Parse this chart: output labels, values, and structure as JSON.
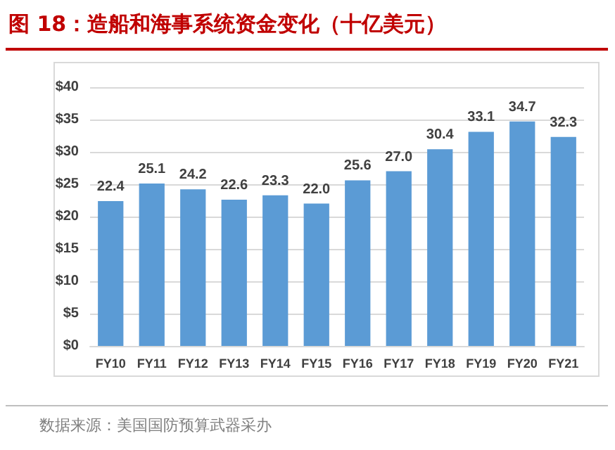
{
  "chart_data": {
    "type": "bar",
    "title": "图 18：造船和海事系统资金变化（十亿美元）",
    "categories": [
      "FY10",
      "FY11",
      "FY12",
      "FY13",
      "FY14",
      "FY15",
      "FY16",
      "FY17",
      "FY18",
      "FY19",
      "FY20",
      "FY21"
    ],
    "values": [
      22.4,
      25.1,
      24.2,
      22.6,
      23.3,
      22.0,
      25.6,
      27.0,
      30.4,
      33.1,
      34.7,
      32.3
    ],
    "color": "#5b9bd5",
    "ylim": [
      0,
      40
    ],
    "yticks": [
      {
        "value": 0,
        "label": "$0"
      },
      {
        "value": 5,
        "label": "$5"
      },
      {
        "value": 10,
        "label": "$10"
      },
      {
        "value": 15,
        "label": "$15"
      },
      {
        "value": 20,
        "label": "$20"
      },
      {
        "value": 25,
        "label": "$25"
      },
      {
        "value": 30,
        "label": "$30"
      },
      {
        "value": 35,
        "label": "$35"
      },
      {
        "value": 40,
        "label": "$40"
      }
    ],
    "grid": "y",
    "value_labels": [
      "22.4",
      "25.1",
      "24.2",
      "22.6",
      "23.3",
      "22.0",
      "25.6",
      "27.0",
      "30.4",
      "33.1",
      "34.7",
      "32.3"
    ],
    "annotations": [
      "数据来源：美国国防预算武器采办"
    ]
  }
}
